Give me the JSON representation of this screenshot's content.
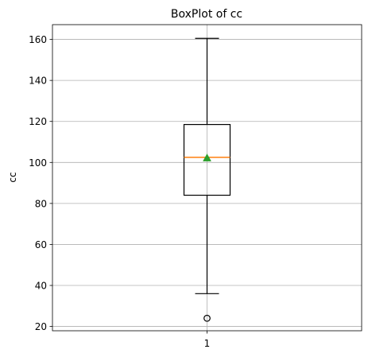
{
  "chart_data": {
    "type": "box",
    "title": "BoxPlot of cc",
    "xlabel": "",
    "ylabel": "cc",
    "categories": [
      "1"
    ],
    "ylim": [
      17.9,
      167.2
    ],
    "y_ticks": [
      20,
      40,
      60,
      80,
      100,
      120,
      140,
      160
    ],
    "grid": true,
    "boxes": [
      {
        "category": "1",
        "whisker_low": 36,
        "q1": 84,
        "median": 102.5,
        "q3": 118.5,
        "whisker_high": 160.5,
        "mean": 102.2,
        "outliers": [
          24
        ]
      }
    ],
    "colors": {
      "box": "#000000",
      "median": "#ff7f0e",
      "mean": "#2ca02c",
      "grid": "#b0b0b0"
    }
  }
}
